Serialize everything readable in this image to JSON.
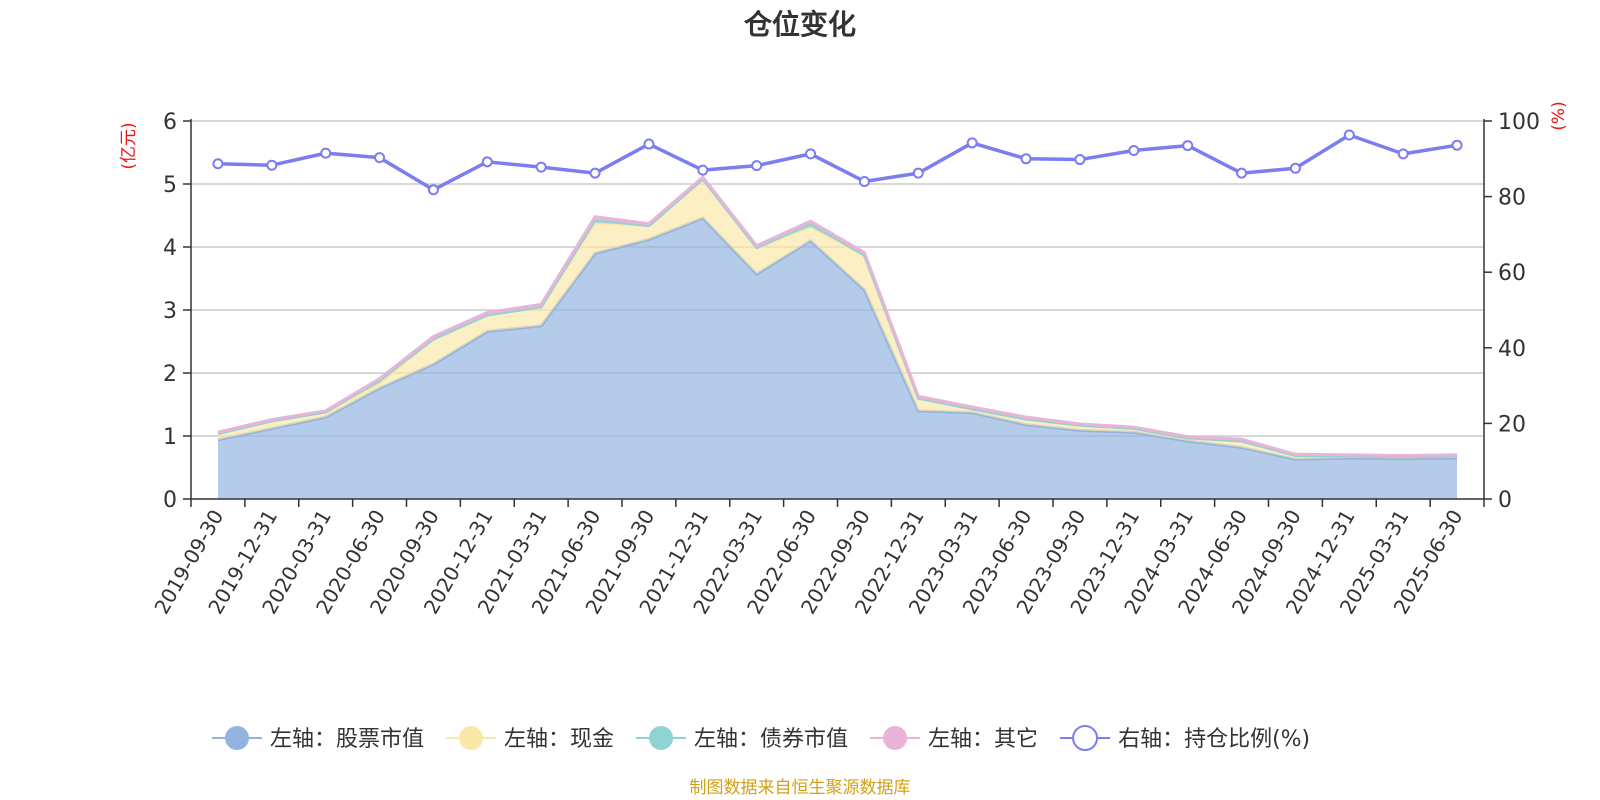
{
  "chart_data": {
    "type": "area",
    "title": "仓位变化",
    "left_unit": "(亿元)",
    "right_unit": "(%)",
    "left_ylim": [
      0,
      6
    ],
    "left_ticks": [
      "0",
      "1",
      "2",
      "3",
      "4",
      "5",
      "6"
    ],
    "right_ylim": [
      0,
      100
    ],
    "right_ticks": [
      "0",
      "20",
      "40",
      "60",
      "80",
      "100"
    ],
    "grid": true,
    "legend_position": "bottom",
    "categories": [
      "2019-09-30",
      "2019-12-31",
      "2020-03-31",
      "2020-06-30",
      "2020-09-30",
      "2020-12-31",
      "2021-03-31",
      "2021-06-30",
      "2021-09-30",
      "2021-12-31",
      "2022-03-31",
      "2022-06-30",
      "2022-09-30",
      "2022-12-31",
      "2023-03-31",
      "2023-06-30",
      "2023-09-30",
      "2023-12-31",
      "2024-03-31",
      "2024-06-30",
      "2024-09-30",
      "2024-12-31",
      "2025-03-31",
      "2025-06-30"
    ],
    "series": [
      {
        "name": "左轴：股票市值",
        "axis": "left",
        "kind": "stacked-area",
        "color": "#92b2e0",
        "values": [
          0.94,
          1.12,
          1.3,
          1.76,
          2.14,
          2.66,
          2.75,
          3.9,
          4.12,
          4.46,
          3.57,
          4.1,
          3.32,
          1.4,
          1.37,
          1.18,
          1.09,
          1.06,
          0.92,
          0.82,
          0.63,
          0.65,
          0.64,
          0.65
        ]
      },
      {
        "name": "左轴：现金",
        "axis": "left",
        "kind": "stacked-area",
        "color": "#fae8a8",
        "values": [
          0.1,
          0.12,
          0.08,
          0.08,
          0.4,
          0.26,
          0.3,
          0.48,
          0.22,
          0.62,
          0.42,
          0.22,
          0.55,
          0.2,
          0.06,
          0.09,
          0.08,
          0.06,
          0.05,
          0.1,
          0.06,
          0.03,
          0.03,
          0.03
        ]
      },
      {
        "name": "左轴：债券市值",
        "axis": "left",
        "kind": "stacked-area",
        "color": "#8fd3d3",
        "values": [
          0,
          0,
          0,
          0.05,
          0,
          0,
          0,
          0.05,
          0,
          0,
          0,
          0.05,
          0,
          0,
          0,
          0,
          0,
          0,
          0,
          0,
          0,
          0,
          0,
          0
        ]
      },
      {
        "name": "左轴：其它",
        "axis": "left",
        "kind": "stacked-area",
        "color": "#e8b4d8",
        "values": [
          0.02,
          0.02,
          0.02,
          0.02,
          0.04,
          0.04,
          0.04,
          0.05,
          0.03,
          0.03,
          0.03,
          0.04,
          0.04,
          0.03,
          0.03,
          0.03,
          0.02,
          0.02,
          0.02,
          0.03,
          0.02,
          0.02,
          0.02,
          0.02
        ]
      },
      {
        "name": "右轴：持仓比例(%)",
        "axis": "right",
        "kind": "line",
        "color": "#7b7df0",
        "values": [
          88.7,
          88.3,
          91.5,
          90.3,
          81.8,
          89.2,
          87.8,
          86.2,
          93.9,
          87.0,
          88.2,
          91.3,
          84.0,
          86.2,
          94.2,
          90.0,
          89.8,
          92.2,
          93.5,
          86.2,
          87.5,
          96.3,
          91.3,
          93.6
        ]
      }
    ]
  },
  "source_note": "制图数据来自恒生聚源数据库"
}
